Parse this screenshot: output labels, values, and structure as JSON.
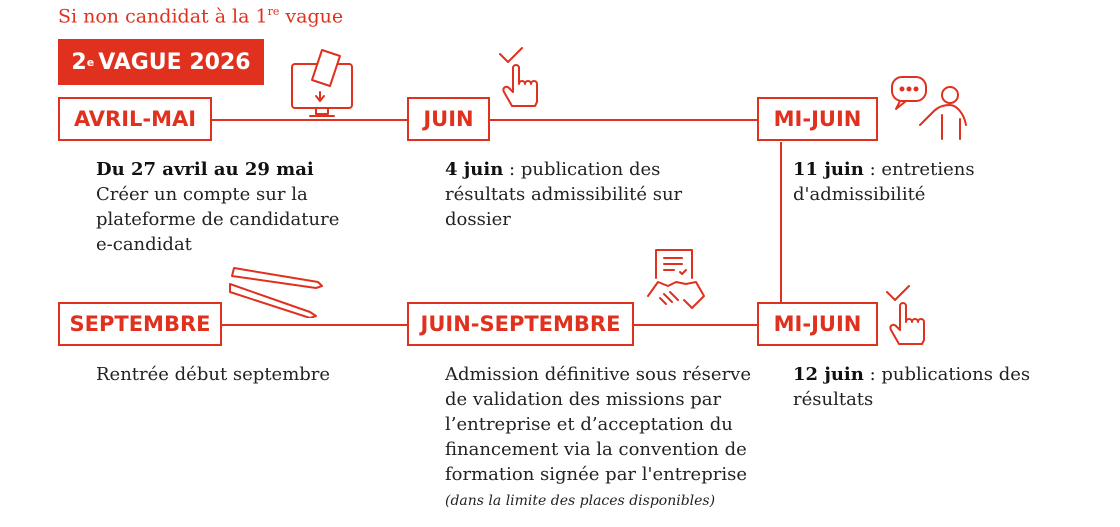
{
  "subtitle": {
    "text": "Si non candidat à la 1",
    "sup": "re",
    "after": " vague"
  },
  "badge": {
    "num": "2",
    "sup": "e",
    "text": "VAGUE 2026"
  },
  "steps": [
    {
      "label": "AVRIL-MAI",
      "bold": "Du 27 avril au 29 mai",
      "text": "Créer un compte sur la plateforme de candidature e-candidat",
      "icon": "computer-download-icon"
    },
    {
      "label": "JUIN",
      "bold": "4 juin",
      "text": " : publication des résultats admissibilité sur dossier",
      "icon": "hand-check-icon"
    },
    {
      "label": "MI-JUIN",
      "bold": "11 juin",
      "text": " : entretiens d'admissibilité",
      "icon": "person-speech-icon"
    },
    {
      "label": "MI-JUIN",
      "bold": "12 juin",
      "text": " : publications des résultats",
      "icon": "hand-check-icon"
    },
    {
      "label": "JUIN-SEPTEMBRE",
      "text": "Admission définitive sous réserve de validation des missions par l’entreprise et d’acceptation du financement via la convention de formation signée par l'entreprise",
      "note": "(dans la limite des places disponibles)",
      "icon": "contract-handshake-icon"
    },
    {
      "label": "SEPTEMBRE",
      "text": "Rentrée début septembre",
      "icon": "pens-icon"
    }
  ],
  "colors": {
    "accent": "#e0301e"
  }
}
